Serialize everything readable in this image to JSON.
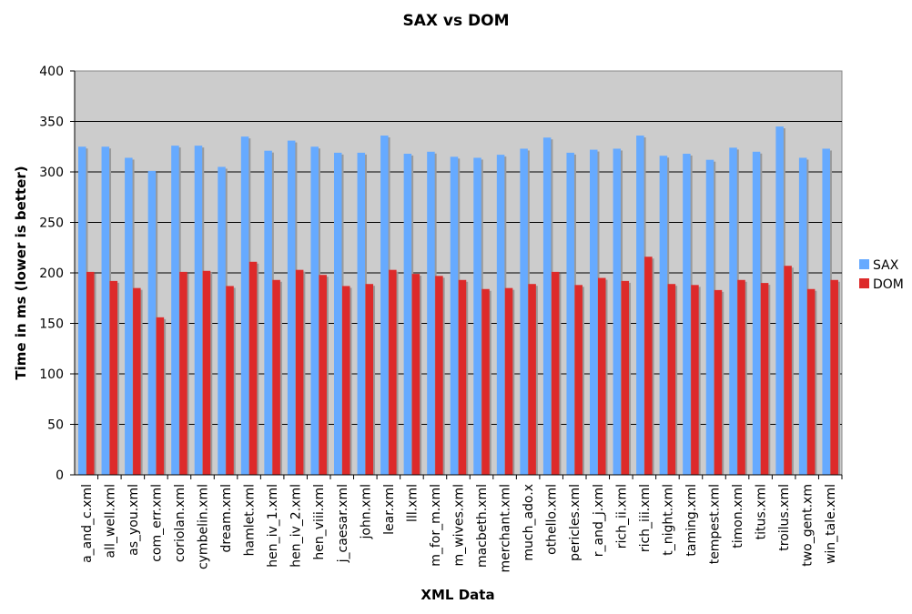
{
  "chart_data": {
    "type": "bar",
    "title": "SAX vs DOM",
    "xlabel": "XML Data",
    "ylabel": "Time in ms (lower is better)",
    "ylim": [
      0,
      400
    ],
    "yticks": [
      0,
      50,
      100,
      150,
      200,
      250,
      300,
      350,
      400
    ],
    "grid": true,
    "legend_position": "right",
    "categories": [
      "a_and_c.xml",
      "all_well.xml",
      "as_you.xml",
      "com_err.xml",
      "coriolan.xml",
      "cymbelin.xml",
      "dream.xml",
      "hamlet.xml",
      "hen_iv_1.xml",
      "hen_iv_2.xml",
      "hen_viii.xml",
      "j_caesar.xml",
      "john.xml",
      "lear.xml",
      "lll.xml",
      "m_for_m.xml",
      "m_wives.xml",
      "macbeth.xml",
      "merchant.xml",
      "much_ado.x",
      "othello.xml",
      "pericles.xml",
      "r_and_j.xml",
      "rich_ii.xml",
      "rich_iii.xml",
      "t_night.xml",
      "taming.xml",
      "tempest.xml",
      "timon.xml",
      "titus.xml",
      "troilus.xml",
      "two_gent.xm",
      "win_tale.xml"
    ],
    "series": [
      {
        "name": "SAX",
        "color": "#66aaff",
        "values": [
          325,
          325,
          314,
          301,
          326,
          326,
          305,
          335,
          321,
          331,
          325,
          319,
          319,
          336,
          318,
          320,
          315,
          314,
          317,
          323,
          334,
          319,
          322,
          323,
          336,
          316,
          318,
          312,
          324,
          320,
          345,
          314,
          323
        ]
      },
      {
        "name": "DOM",
        "color": "#dd2a2a",
        "values": [
          201,
          192,
          185,
          156,
          201,
          202,
          187,
          211,
          193,
          203,
          198,
          187,
          189,
          203,
          199,
          197,
          193,
          184,
          185,
          189,
          201,
          188,
          195,
          192,
          216,
          189,
          188,
          183,
          193,
          190,
          207,
          184,
          193
        ]
      }
    ]
  }
}
